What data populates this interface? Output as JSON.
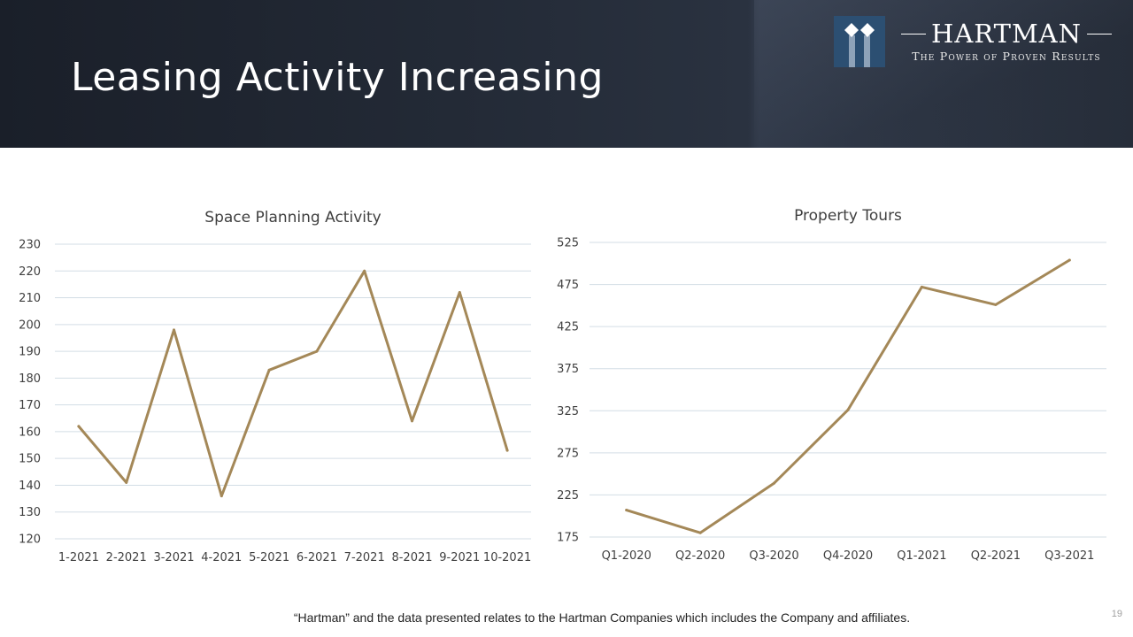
{
  "slide": {
    "title": "Leasing Activity Increasing",
    "footnote": "“Hartman” and the data presented relates to the Hartman Companies which includes the Company and affiliates.",
    "page_number": "19"
  },
  "logo": {
    "name": "HARTMAN",
    "tagline": "The Power of Proven Results"
  },
  "colors": {
    "line": "#a48858",
    "grid": "#d3dde5",
    "axis_text": "#404040",
    "title_text": "#404040",
    "logo_blue": "#2c4f72"
  },
  "chart_data": [
    {
      "type": "line",
      "title": "Space Planning Activity",
      "categories": [
        "1-2021",
        "2-2021",
        "3-2021",
        "4-2021",
        "5-2021",
        "6-2021",
        "7-2021",
        "8-2021",
        "9-2021",
        "10-2021"
      ],
      "values": [
        162,
        141,
        198,
        136,
        183,
        190,
        220,
        164,
        212,
        153
      ],
      "yticks": [
        120,
        130,
        140,
        150,
        160,
        170,
        180,
        190,
        200,
        210,
        220,
        230
      ],
      "ylim": [
        120,
        230
      ],
      "xlabel": "",
      "ylabel": "",
      "grid": true,
      "legend": "none"
    },
    {
      "type": "line",
      "title": "Property Tours",
      "categories": [
        "Q1-2020",
        "Q2-2020",
        "Q3-2020",
        "Q4-2020",
        "Q1-2021",
        "Q2-2021",
        "Q3-2021"
      ],
      "values": [
        207,
        180,
        239,
        326,
        472,
        451,
        504
      ],
      "yticks": [
        175,
        225,
        275,
        325,
        375,
        425,
        475,
        525
      ],
      "ylim": [
        175,
        525
      ],
      "xlabel": "",
      "ylabel": "",
      "grid": true,
      "legend": "none"
    }
  ]
}
